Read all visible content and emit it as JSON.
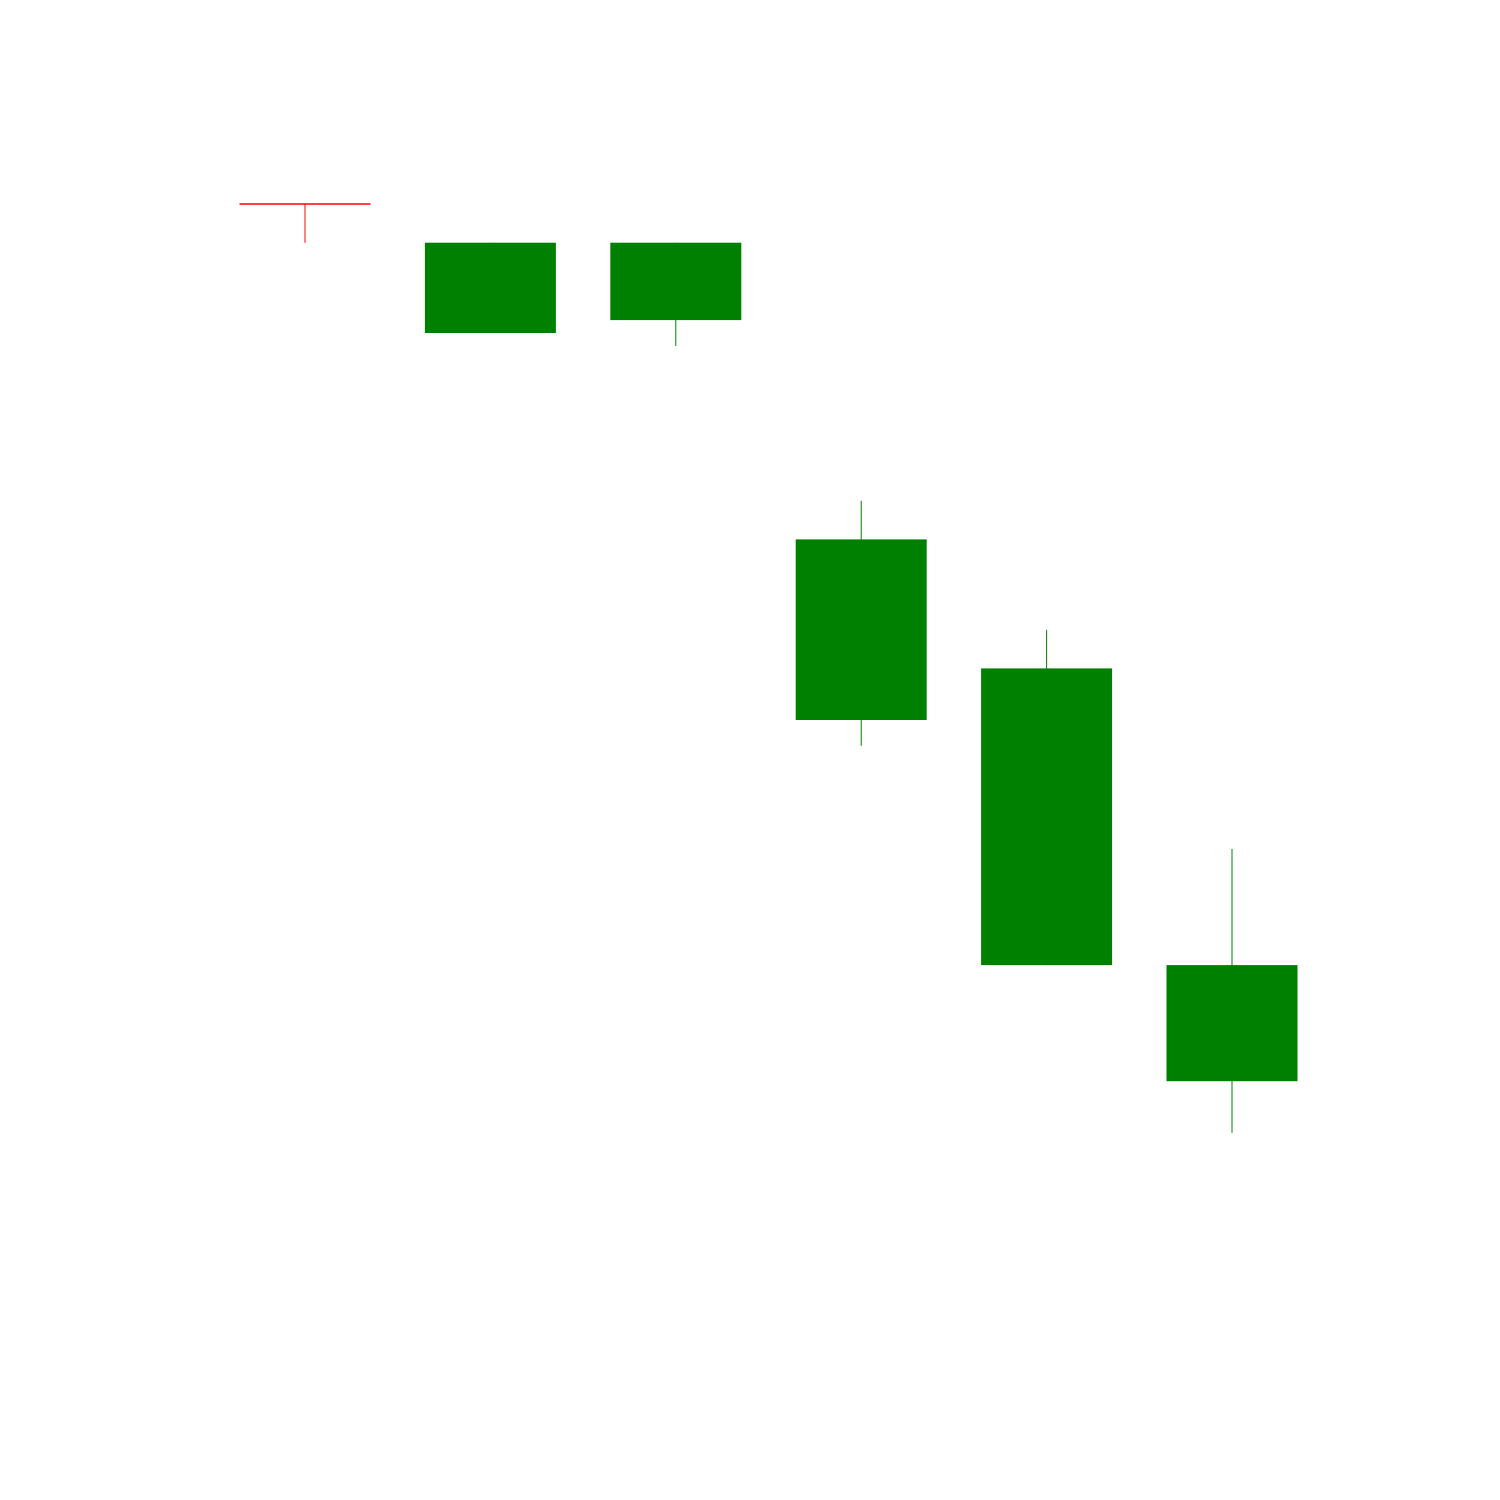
{
  "chart_data": {
    "type": "candlestick",
    "title": "",
    "xlabel": "",
    "ylabel": "",
    "axes_visible": false,
    "grid": false,
    "legend": "none",
    "ylim": [
      0,
      100
    ],
    "colors": {
      "up": "#008000",
      "down": "#ff0000",
      "background": "#ffffff"
    },
    "candles": [
      {
        "index": 1,
        "open": 90.0,
        "high": 90.0,
        "low": 87.0,
        "close": 90.0,
        "direction": "down"
      },
      {
        "index": 2,
        "open": 80.0,
        "high": 87.0,
        "low": 80.0,
        "close": 87.0,
        "direction": "up"
      },
      {
        "index": 3,
        "open": 81.0,
        "high": 87.0,
        "low": 79.0,
        "close": 87.0,
        "direction": "up"
      },
      {
        "index": 4,
        "open": 50.0,
        "high": 67.0,
        "low": 48.0,
        "close": 64.0,
        "direction": "up"
      },
      {
        "index": 5,
        "open": 31.0,
        "high": 57.0,
        "low": 31.0,
        "close": 54.0,
        "direction": "up"
      },
      {
        "index": 6,
        "open": 22.0,
        "high": 40.0,
        "low": 18.0,
        "close": 31.0,
        "direction": "up"
      }
    ]
  }
}
